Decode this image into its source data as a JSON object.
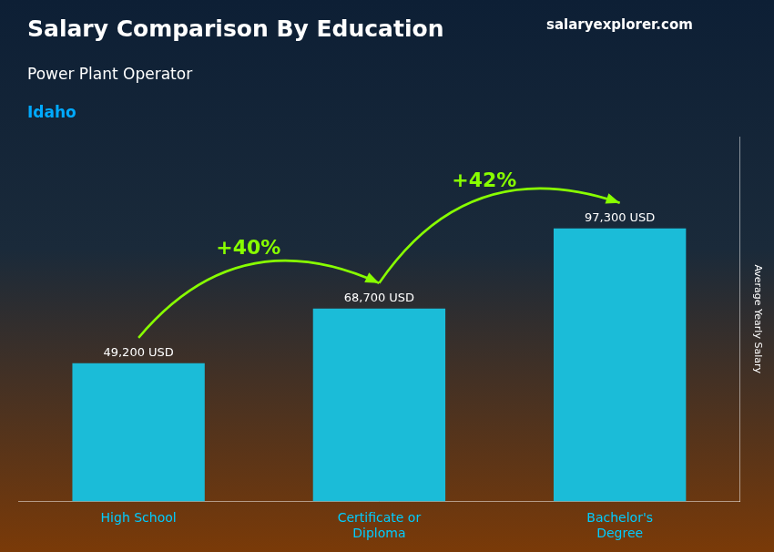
{
  "chart_data": {
    "type": "bar",
    "title": "Salary Comparison By Education",
    "subtitle": "Power Plant Operator",
    "annotations": [
      "Idaho",
      "salaryexplorer.com",
      "+40%",
      "+42%"
    ],
    "y_label": "Average Yearly Salary",
    "categories": [
      "High School",
      "Certificate or\nDiploma",
      "Bachelor's\nDegree"
    ],
    "values": [
      49200,
      68700,
      97300
    ],
    "value_labels": [
      "49,200 USD",
      "68,700 USD",
      "97,300 USD"
    ],
    "data_labels": true,
    "color": "#1bbcd8",
    "ylim": [
      0,
      130000
    ],
    "grid": false,
    "tick_labels": "x"
  }
}
